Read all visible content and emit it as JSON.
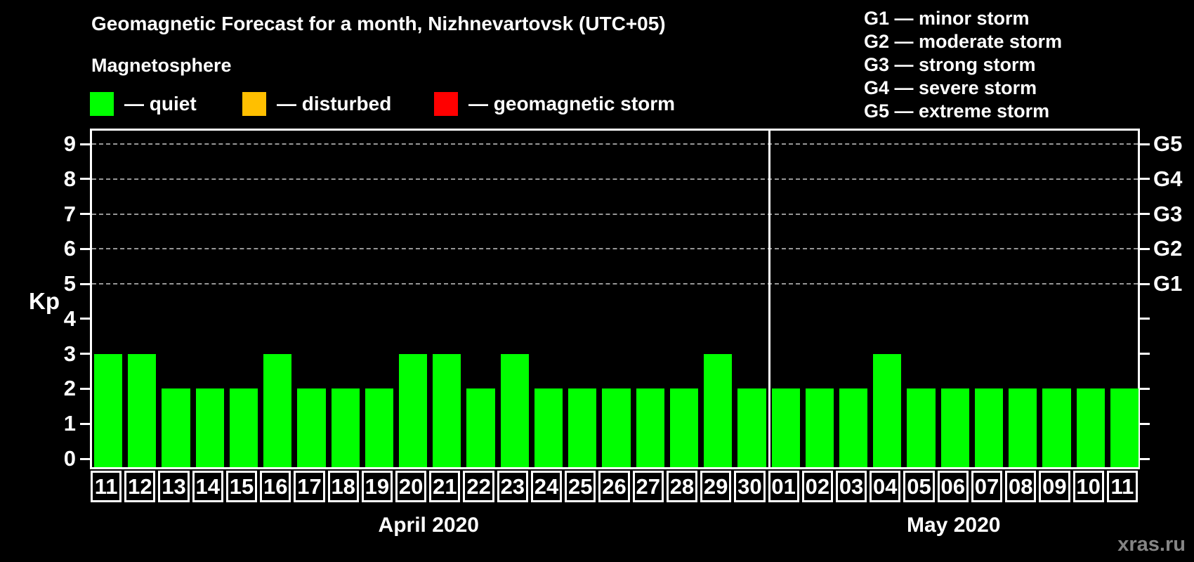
{
  "title": "Geomagnetic Forecast for a month, Nizhnevartovsk (UTC+05)",
  "subtitle": "Magnetosphere",
  "legend": {
    "items": [
      {
        "name": "quiet",
        "label": "— quiet",
        "color": "#00ff00"
      },
      {
        "name": "disturbed",
        "label": "— disturbed",
        "color": "#ffbf00"
      },
      {
        "name": "geomagnetic-storm",
        "label": "— geomagnetic storm",
        "color": "#ff0000"
      }
    ]
  },
  "storm_scale_legend": [
    "G1 — minor storm",
    "G2 — moderate storm",
    "G3 — strong storm",
    "G4 — severe storm",
    "G5 — extreme storm"
  ],
  "watermark": "xras.ru",
  "chart_data": {
    "type": "bar",
    "title": "Geomagnetic Forecast for a month, Nizhnevartovsk (UTC+05)",
    "xlabel": "",
    "ylabel": "Kp",
    "ylim": [
      0,
      9
    ],
    "yticks": [
      0,
      1,
      2,
      3,
      4,
      5,
      6,
      7,
      8,
      9
    ],
    "gridlines_at": [
      5,
      6,
      7,
      8,
      9
    ],
    "grid": "horizontal dashed at Kp 5-9 only",
    "legend_position": "top-left",
    "right_axis": {
      "labels": [
        "G1",
        "G2",
        "G3",
        "G4",
        "G5"
      ],
      "at_kp": [
        5,
        6,
        7,
        8,
        9
      ]
    },
    "categories": [
      "11",
      "12",
      "13",
      "14",
      "15",
      "16",
      "17",
      "18",
      "19",
      "20",
      "21",
      "22",
      "23",
      "24",
      "25",
      "26",
      "27",
      "28",
      "29",
      "30",
      "01",
      "02",
      "03",
      "04",
      "05",
      "06",
      "07",
      "08",
      "09",
      "10",
      "11"
    ],
    "values": [
      3,
      3,
      2,
      2,
      2,
      3,
      2,
      2,
      2,
      3,
      3,
      2,
      3,
      2,
      2,
      2,
      2,
      2,
      3,
      2,
      2,
      2,
      2,
      3,
      2,
      2,
      2,
      2,
      2,
      2,
      2
    ],
    "bar_color": "#00ff00",
    "bar_status_all": "quiet",
    "months": [
      {
        "label": "April 2020",
        "days": 20
      },
      {
        "label": "May 2020",
        "days": 11
      }
    ]
  }
}
